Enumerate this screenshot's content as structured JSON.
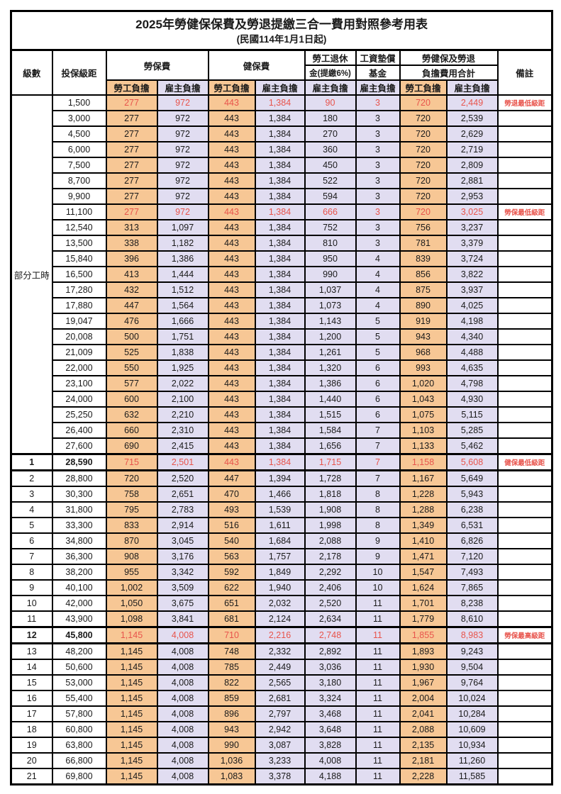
{
  "title": "2025年勞健保保費及勞退提繳三合一費用對照參考用表",
  "subtitle": "(民國114年1月1日起)",
  "colors": {
    "employee_bg": "#f7c795",
    "employer_bg": "#e1ddf1",
    "highlight_red": "#e8544c",
    "grid": "#000000"
  },
  "header": {
    "level": "級數",
    "bracket": "投保級距",
    "labor_insurance": "勞保費",
    "health_insurance": "健保費",
    "pension_line1": "勞工退休",
    "pension_line2": "金(提繳6%)",
    "wage_fund_line1": "工資墊償",
    "wage_fund_line2": "基金",
    "total_line1": "勞健保及勞退",
    "total_line2": "負擔費用合計",
    "employee": "勞工負擔",
    "employer": "雇主負擔",
    "remark": "備註"
  },
  "part_time_label": "部分工時",
  "column_kinds": [
    "emp",
    "er",
    "emp",
    "er",
    "er",
    "er",
    "emp",
    "er"
  ],
  "rows": [
    {
      "level": null,
      "bracket": "1,500",
      "values": [
        "277",
        "972",
        "443",
        "1,384",
        "90",
        "3",
        "720",
        "2,449"
      ],
      "remark": "勞退最低級距",
      "red": true,
      "bold": false,
      "thick": false
    },
    {
      "level": null,
      "bracket": "3,000",
      "values": [
        "277",
        "972",
        "443",
        "1,384",
        "180",
        "3",
        "720",
        "2,539"
      ],
      "remark": "",
      "red": false,
      "bold": false,
      "thick": false
    },
    {
      "level": null,
      "bracket": "4,500",
      "values": [
        "277",
        "972",
        "443",
        "1,384",
        "270",
        "3",
        "720",
        "2,629"
      ],
      "remark": "",
      "red": false,
      "bold": false,
      "thick": false
    },
    {
      "level": null,
      "bracket": "6,000",
      "values": [
        "277",
        "972",
        "443",
        "1,384",
        "360",
        "3",
        "720",
        "2,719"
      ],
      "remark": "",
      "red": false,
      "bold": false,
      "thick": false
    },
    {
      "level": null,
      "bracket": "7,500",
      "values": [
        "277",
        "972",
        "443",
        "1,384",
        "450",
        "3",
        "720",
        "2,809"
      ],
      "remark": "",
      "red": false,
      "bold": false,
      "thick": false
    },
    {
      "level": null,
      "bracket": "8,700",
      "values": [
        "277",
        "972",
        "443",
        "1,384",
        "522",
        "3",
        "720",
        "2,881"
      ],
      "remark": "",
      "red": false,
      "bold": false,
      "thick": false
    },
    {
      "level": null,
      "bracket": "9,900",
      "values": [
        "277",
        "972",
        "443",
        "1,384",
        "594",
        "3",
        "720",
        "2,953"
      ],
      "remark": "",
      "red": false,
      "bold": false,
      "thick": false
    },
    {
      "level": null,
      "bracket": "11,100",
      "values": [
        "277",
        "972",
        "443",
        "1,384",
        "666",
        "3",
        "720",
        "3,025"
      ],
      "remark": "勞保最低級距",
      "red": true,
      "bold": false,
      "thick": false
    },
    {
      "level": null,
      "bracket": "12,540",
      "values": [
        "313",
        "1,097",
        "443",
        "1,384",
        "752",
        "3",
        "756",
        "3,237"
      ],
      "remark": "",
      "red": false,
      "bold": false,
      "thick": false
    },
    {
      "level": null,
      "bracket": "13,500",
      "values": [
        "338",
        "1,182",
        "443",
        "1,384",
        "810",
        "3",
        "781",
        "3,379"
      ],
      "remark": "",
      "red": false,
      "bold": false,
      "thick": false
    },
    {
      "level": null,
      "bracket": "15,840",
      "values": [
        "396",
        "1,386",
        "443",
        "1,384",
        "950",
        "4",
        "839",
        "3,724"
      ],
      "remark": "",
      "red": false,
      "bold": false,
      "thick": false
    },
    {
      "level": null,
      "bracket": "16,500",
      "values": [
        "413",
        "1,444",
        "443",
        "1,384",
        "990",
        "4",
        "856",
        "3,822"
      ],
      "remark": "",
      "red": false,
      "bold": false,
      "thick": false
    },
    {
      "level": null,
      "bracket": "17,280",
      "values": [
        "432",
        "1,512",
        "443",
        "1,384",
        "1,037",
        "4",
        "875",
        "3,937"
      ],
      "remark": "",
      "red": false,
      "bold": false,
      "thick": false
    },
    {
      "level": null,
      "bracket": "17,880",
      "values": [
        "447",
        "1,564",
        "443",
        "1,384",
        "1,073",
        "4",
        "890",
        "4,025"
      ],
      "remark": "",
      "red": false,
      "bold": false,
      "thick": false
    },
    {
      "level": null,
      "bracket": "19,047",
      "values": [
        "476",
        "1,666",
        "443",
        "1,384",
        "1,143",
        "5",
        "919",
        "4,198"
      ],
      "remark": "",
      "red": false,
      "bold": false,
      "thick": false
    },
    {
      "level": null,
      "bracket": "20,008",
      "values": [
        "500",
        "1,751",
        "443",
        "1,384",
        "1,200",
        "5",
        "943",
        "4,340"
      ],
      "remark": "",
      "red": false,
      "bold": false,
      "thick": false
    },
    {
      "level": null,
      "bracket": "21,009",
      "values": [
        "525",
        "1,838",
        "443",
        "1,384",
        "1,261",
        "5",
        "968",
        "4,488"
      ],
      "remark": "",
      "red": false,
      "bold": false,
      "thick": false
    },
    {
      "level": null,
      "bracket": "22,000",
      "values": [
        "550",
        "1,925",
        "443",
        "1,384",
        "1,320",
        "6",
        "993",
        "4,635"
      ],
      "remark": "",
      "red": false,
      "bold": false,
      "thick": false
    },
    {
      "level": null,
      "bracket": "23,100",
      "values": [
        "577",
        "2,022",
        "443",
        "1,384",
        "1,386",
        "6",
        "1,020",
        "4,798"
      ],
      "remark": "",
      "red": false,
      "bold": false,
      "thick": false
    },
    {
      "level": null,
      "bracket": "24,000",
      "values": [
        "600",
        "2,100",
        "443",
        "1,384",
        "1,440",
        "6",
        "1,043",
        "4,930"
      ],
      "remark": "",
      "red": false,
      "bold": false,
      "thick": false
    },
    {
      "level": null,
      "bracket": "25,250",
      "values": [
        "632",
        "2,210",
        "443",
        "1,384",
        "1,515",
        "6",
        "1,075",
        "5,115"
      ],
      "remark": "",
      "red": false,
      "bold": false,
      "thick": false
    },
    {
      "level": null,
      "bracket": "26,400",
      "values": [
        "660",
        "2,310",
        "443",
        "1,384",
        "1,584",
        "7",
        "1,103",
        "5,285"
      ],
      "remark": "",
      "red": false,
      "bold": false,
      "thick": false
    },
    {
      "level": null,
      "bracket": "27,600",
      "values": [
        "690",
        "2,415",
        "443",
        "1,384",
        "1,656",
        "7",
        "1,133",
        "5,462"
      ],
      "remark": "",
      "red": false,
      "bold": false,
      "thick": false
    },
    {
      "level": "1",
      "bracket": "28,590",
      "values": [
        "715",
        "2,501",
        "443",
        "1,384",
        "1,715",
        "7",
        "1,158",
        "5,608"
      ],
      "remark": "健保最低級距",
      "red": true,
      "bold": true,
      "thick": true
    },
    {
      "level": "2",
      "bracket": "28,800",
      "values": [
        "720",
        "2,520",
        "447",
        "1,394",
        "1,728",
        "7",
        "1,167",
        "5,649"
      ],
      "remark": "",
      "red": false,
      "bold": false,
      "thick": false
    },
    {
      "level": "3",
      "bracket": "30,300",
      "values": [
        "758",
        "2,651",
        "470",
        "1,466",
        "1,818",
        "8",
        "1,228",
        "5,943"
      ],
      "remark": "",
      "red": false,
      "bold": false,
      "thick": false
    },
    {
      "level": "4",
      "bracket": "31,800",
      "values": [
        "795",
        "2,783",
        "493",
        "1,539",
        "1,908",
        "8",
        "1,288",
        "6,238"
      ],
      "remark": "",
      "red": false,
      "bold": false,
      "thick": false
    },
    {
      "level": "5",
      "bracket": "33,300",
      "values": [
        "833",
        "2,914",
        "516",
        "1,611",
        "1,998",
        "8",
        "1,349",
        "6,531"
      ],
      "remark": "",
      "red": false,
      "bold": false,
      "thick": false
    },
    {
      "level": "6",
      "bracket": "34,800",
      "values": [
        "870",
        "3,045",
        "540",
        "1,684",
        "2,088",
        "9",
        "1,410",
        "6,826"
      ],
      "remark": "",
      "red": false,
      "bold": false,
      "thick": false
    },
    {
      "level": "7",
      "bracket": "36,300",
      "values": [
        "908",
        "3,176",
        "563",
        "1,757",
        "2,178",
        "9",
        "1,471",
        "7,120"
      ],
      "remark": "",
      "red": false,
      "bold": false,
      "thick": false
    },
    {
      "level": "8",
      "bracket": "38,200",
      "values": [
        "955",
        "3,342",
        "592",
        "1,849",
        "2,292",
        "10",
        "1,547",
        "7,493"
      ],
      "remark": "",
      "red": false,
      "bold": false,
      "thick": false
    },
    {
      "level": "9",
      "bracket": "40,100",
      "values": [
        "1,002",
        "3,509",
        "622",
        "1,940",
        "2,406",
        "10",
        "1,624",
        "7,865"
      ],
      "remark": "",
      "red": false,
      "bold": false,
      "thick": false
    },
    {
      "level": "10",
      "bracket": "42,000",
      "values": [
        "1,050",
        "3,675",
        "651",
        "2,032",
        "2,520",
        "11",
        "1,701",
        "8,238"
      ],
      "remark": "",
      "red": false,
      "bold": false,
      "thick": false
    },
    {
      "level": "11",
      "bracket": "43,900",
      "values": [
        "1,098",
        "3,841",
        "681",
        "2,124",
        "2,634",
        "11",
        "1,779",
        "8,610"
      ],
      "remark": "",
      "red": false,
      "bold": false,
      "thick": false
    },
    {
      "level": "12",
      "bracket": "45,800",
      "values": [
        "1,145",
        "4,008",
        "710",
        "2,216",
        "2,748",
        "11",
        "1,855",
        "8,983"
      ],
      "remark": "勞保最高級距",
      "red": true,
      "bold": true,
      "thick": true
    },
    {
      "level": "13",
      "bracket": "48,200",
      "values": [
        "1,145",
        "4,008",
        "748",
        "2,332",
        "2,892",
        "11",
        "1,893",
        "9,243"
      ],
      "remark": "",
      "red": false,
      "bold": false,
      "thick": false
    },
    {
      "level": "14",
      "bracket": "50,600",
      "values": [
        "1,145",
        "4,008",
        "785",
        "2,449",
        "3,036",
        "11",
        "1,930",
        "9,504"
      ],
      "remark": "",
      "red": false,
      "bold": false,
      "thick": false
    },
    {
      "level": "15",
      "bracket": "53,000",
      "values": [
        "1,145",
        "4,008",
        "822",
        "2,565",
        "3,180",
        "11",
        "1,967",
        "9,764"
      ],
      "remark": "",
      "red": false,
      "bold": false,
      "thick": false
    },
    {
      "level": "16",
      "bracket": "55,400",
      "values": [
        "1,145",
        "4,008",
        "859",
        "2,681",
        "3,324",
        "11",
        "2,004",
        "10,024"
      ],
      "remark": "",
      "red": false,
      "bold": false,
      "thick": false
    },
    {
      "level": "17",
      "bracket": "57,800",
      "values": [
        "1,145",
        "4,008",
        "896",
        "2,797",
        "3,468",
        "11",
        "2,041",
        "10,284"
      ],
      "remark": "",
      "red": false,
      "bold": false,
      "thick": false
    },
    {
      "level": "18",
      "bracket": "60,800",
      "values": [
        "1,145",
        "4,008",
        "943",
        "2,942",
        "3,648",
        "11",
        "2,088",
        "10,609"
      ],
      "remark": "",
      "red": false,
      "bold": false,
      "thick": false
    },
    {
      "level": "19",
      "bracket": "63,800",
      "values": [
        "1,145",
        "4,008",
        "990",
        "3,087",
        "3,828",
        "11",
        "2,135",
        "10,934"
      ],
      "remark": "",
      "red": false,
      "bold": false,
      "thick": false
    },
    {
      "level": "20",
      "bracket": "66,800",
      "values": [
        "1,145",
        "4,008",
        "1,036",
        "3,233",
        "4,008",
        "11",
        "2,181",
        "11,260"
      ],
      "remark": "",
      "red": false,
      "bold": false,
      "thick": false
    },
    {
      "level": "21",
      "bracket": "69,800",
      "values": [
        "1,145",
        "4,008",
        "1,083",
        "3,378",
        "4,188",
        "11",
        "2,228",
        "11,585"
      ],
      "remark": "",
      "red": false,
      "bold": false,
      "thick": false
    }
  ]
}
